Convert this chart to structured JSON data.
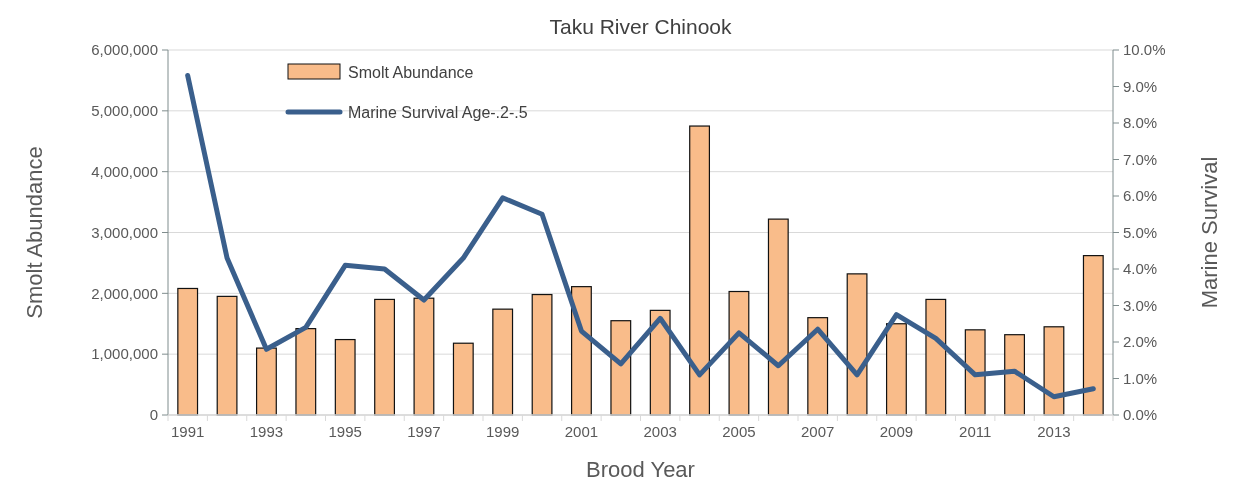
{
  "chart_data": {
    "type": "bar",
    "title": "Taku River Chinook",
    "xlabel": "Brood Year",
    "ylabel": "Smolt Abundance",
    "y2label": "Marine Survival",
    "categories": [
      "1991",
      null,
      "1993",
      null,
      "1995",
      null,
      "1997",
      null,
      "1999",
      null,
      "2001",
      null,
      "2003",
      null,
      "2005",
      null,
      "2007",
      null,
      "2009",
      null,
      "2011",
      null,
      "2013",
      null
    ],
    "series": [
      {
        "name": "Smolt Abundance",
        "color": "#f9bc8a",
        "values": [
          2080000,
          1950000,
          1100000,
          1420000,
          1240000,
          1900000,
          1920000,
          1180000,
          1740000,
          1980000,
          2110000,
          1550000,
          1720000,
          4750000,
          2030000,
          3220000,
          1600000,
          2320000,
          1500000,
          1900000,
          1400000,
          1320000,
          1450000,
          2620000
        ]
      },
      {
        "name": "Marine Survival Age-.2-.5",
        "type": "line",
        "axis": "y2",
        "color": "#3a5f8c",
        "values": [
          9.3,
          4.3,
          1.8,
          2.4,
          4.1,
          4.0,
          3.15,
          4.3,
          5.95,
          5.5,
          2.3,
          1.4,
          2.65,
          1.1,
          2.25,
          1.35,
          2.35,
          1.1,
          2.75,
          2.1,
          1.1,
          1.2,
          0.5,
          0.72
        ]
      }
    ],
    "ylim": [
      0,
      6000000
    ],
    "yticks": [
      {
        "value": 0,
        "label": "0"
      },
      {
        "value": 1000000,
        "label": "1,000,000"
      },
      {
        "value": 2000000,
        "label": "2,000,000"
      },
      {
        "value": 3000000,
        "label": "3,000,000"
      },
      {
        "value": 4000000,
        "label": "4,000,000"
      },
      {
        "value": 5000000,
        "label": "5,000,000"
      },
      {
        "value": 6000000,
        "label": "6,000,000"
      }
    ],
    "y2lim": [
      0,
      10
    ],
    "y2ticks": [
      {
        "value": 0,
        "label": "0.0%"
      },
      {
        "value": 1,
        "label": "1.0%"
      },
      {
        "value": 2,
        "label": "2.0%"
      },
      {
        "value": 3,
        "label": "3.0%"
      },
      {
        "value": 4,
        "label": "4.0%"
      },
      {
        "value": 5,
        "label": "5.0%"
      },
      {
        "value": 6,
        "label": "6.0%"
      },
      {
        "value": 7,
        "label": "7.0%"
      },
      {
        "value": 8,
        "label": "8.0%"
      },
      {
        "value": 9,
        "label": "9.0%"
      },
      {
        "value": 10,
        "label": "10.0%"
      }
    ],
    "grid": "y",
    "legend": "top left",
    "line_style": "solid",
    "marker": "none"
  }
}
